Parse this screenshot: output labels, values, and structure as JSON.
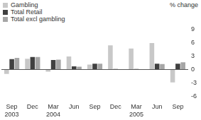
{
  "chart_data": {
    "type": "bar",
    "y_label": "% change",
    "categories": [
      "Sep 2003",
      "Dec",
      "Mar 2004",
      "Jun",
      "Sep",
      "Dec",
      "Mar 2005",
      "Jun",
      "Sep"
    ],
    "series": [
      {
        "name": "Gambling",
        "color": "#c8c8c8",
        "values": [
          -1.0,
          2.4,
          -0.5,
          2.9,
          1.1,
          5.4,
          4.7,
          5.9,
          -2.9
        ]
      },
      {
        "name": "Total Retail",
        "color": "#404040",
        "values": [
          2.3,
          2.8,
          2.1,
          0.7,
          1.3,
          0.1,
          0.1,
          1.3,
          1.3
        ]
      },
      {
        "name": "Total excl gambling",
        "color": "#a6a6a6",
        "values": [
          2.6,
          2.8,
          2.2,
          0.6,
          1.3,
          0.0,
          0.0,
          1.2,
          1.6
        ]
      }
    ],
    "ylim": [
      -6,
      9
    ],
    "yticks": [
      -6,
      -3,
      0,
      3,
      6,
      9
    ],
    "grid": false,
    "legend": "top-left"
  }
}
